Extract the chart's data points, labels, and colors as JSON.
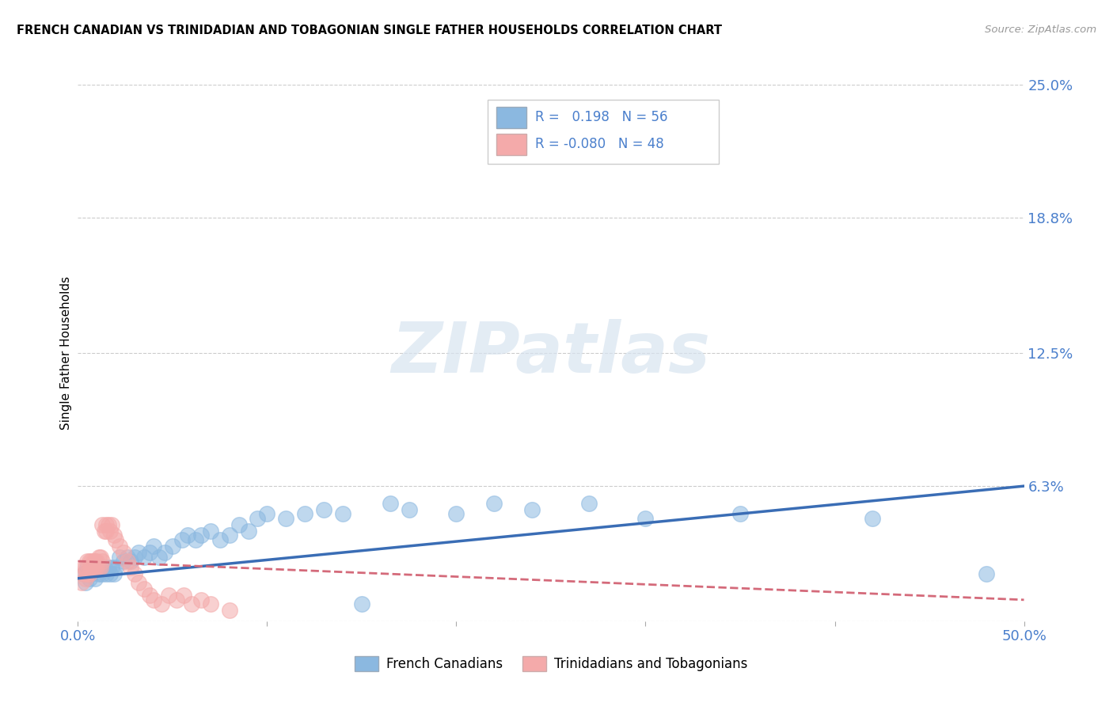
{
  "title": "FRENCH CANADIAN VS TRINIDADIAN AND TOBAGONIAN SINGLE FATHER HOUSEHOLDS CORRELATION CHART",
  "source": "Source: ZipAtlas.com",
  "ylabel": "Single Father Households",
  "xlim": [
    0.0,
    0.5
  ],
  "ylim": [
    0.0,
    0.25
  ],
  "xticks": [
    0.0,
    0.1,
    0.2,
    0.3,
    0.4,
    0.5
  ],
  "xticklabels": [
    "0.0%",
    "",
    "",
    "",
    "",
    "50.0%"
  ],
  "ytick_positions": [
    0.0,
    0.063,
    0.125,
    0.188,
    0.25
  ],
  "yticklabels": [
    "",
    "6.3%",
    "12.5%",
    "18.8%",
    "25.0%"
  ],
  "blue_color": "#8BB8E0",
  "blue_line_color": "#3A6DB5",
  "pink_color": "#F4AAAA",
  "pink_line_color": "#D46A7A",
  "axis_tick_color": "#4A7FCC",
  "grid_color": "#CCCCCC",
  "watermark_text": "ZIPatlas",
  "blue_scatter_x": [
    0.003,
    0.004,
    0.005,
    0.006,
    0.007,
    0.008,
    0.009,
    0.01,
    0.011,
    0.012,
    0.013,
    0.014,
    0.015,
    0.016,
    0.017,
    0.018,
    0.019,
    0.02,
    0.022,
    0.024,
    0.026,
    0.028,
    0.03,
    0.032,
    0.035,
    0.038,
    0.04,
    0.043,
    0.046,
    0.05,
    0.055,
    0.058,
    0.062,
    0.065,
    0.07,
    0.075,
    0.08,
    0.085,
    0.09,
    0.095,
    0.1,
    0.11,
    0.12,
    0.13,
    0.14,
    0.15,
    0.165,
    0.175,
    0.2,
    0.22,
    0.24,
    0.27,
    0.3,
    0.35,
    0.42,
    0.48
  ],
  "blue_scatter_y": [
    0.022,
    0.018,
    0.025,
    0.02,
    0.022,
    0.025,
    0.02,
    0.025,
    0.022,
    0.025,
    0.022,
    0.025,
    0.022,
    0.025,
    0.022,
    0.025,
    0.022,
    0.025,
    0.03,
    0.028,
    0.03,
    0.028,
    0.03,
    0.032,
    0.03,
    0.032,
    0.035,
    0.03,
    0.032,
    0.035,
    0.038,
    0.04,
    0.038,
    0.04,
    0.042,
    0.038,
    0.04,
    0.045,
    0.042,
    0.048,
    0.05,
    0.048,
    0.05,
    0.052,
    0.05,
    0.008,
    0.055,
    0.052,
    0.05,
    0.055,
    0.052,
    0.055,
    0.048,
    0.05,
    0.048,
    0.022
  ],
  "pink_scatter_x": [
    0.002,
    0.003,
    0.003,
    0.004,
    0.004,
    0.005,
    0.005,
    0.006,
    0.006,
    0.007,
    0.007,
    0.008,
    0.008,
    0.009,
    0.009,
    0.01,
    0.01,
    0.011,
    0.011,
    0.012,
    0.012,
    0.013,
    0.013,
    0.014,
    0.015,
    0.015,
    0.016,
    0.017,
    0.018,
    0.019,
    0.02,
    0.022,
    0.024,
    0.026,
    0.028,
    0.03,
    0.032,
    0.035,
    0.038,
    0.04,
    0.044,
    0.048,
    0.052,
    0.056,
    0.06,
    0.065,
    0.07,
    0.08
  ],
  "pink_scatter_y": [
    0.018,
    0.022,
    0.025,
    0.02,
    0.025,
    0.022,
    0.028,
    0.022,
    0.028,
    0.025,
    0.028,
    0.025,
    0.028,
    0.025,
    0.028,
    0.025,
    0.028,
    0.025,
    0.03,
    0.025,
    0.03,
    0.028,
    0.045,
    0.042,
    0.045,
    0.042,
    0.045,
    0.042,
    0.045,
    0.04,
    0.038,
    0.035,
    0.032,
    0.028,
    0.025,
    0.022,
    0.018,
    0.015,
    0.012,
    0.01,
    0.008,
    0.012,
    0.01,
    0.012,
    0.008,
    0.01,
    0.008,
    0.005
  ],
  "blue_line_x": [
    0.0,
    0.5
  ],
  "blue_line_y": [
    0.02,
    0.063
  ],
  "pink_line_x": [
    0.0,
    0.5
  ],
  "pink_line_y": [
    0.028,
    0.01
  ]
}
